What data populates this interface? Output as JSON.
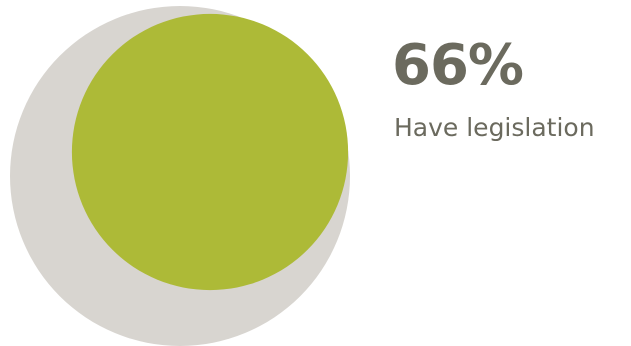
{
  "chart_data": {
    "type": "pie",
    "title": "",
    "value_label": "66%",
    "series_label": "Have legislation",
    "percent": 66,
    "colors": {
      "whole": "#d8d5d0",
      "part": "#adba37",
      "text": "#6b6a5e"
    }
  }
}
